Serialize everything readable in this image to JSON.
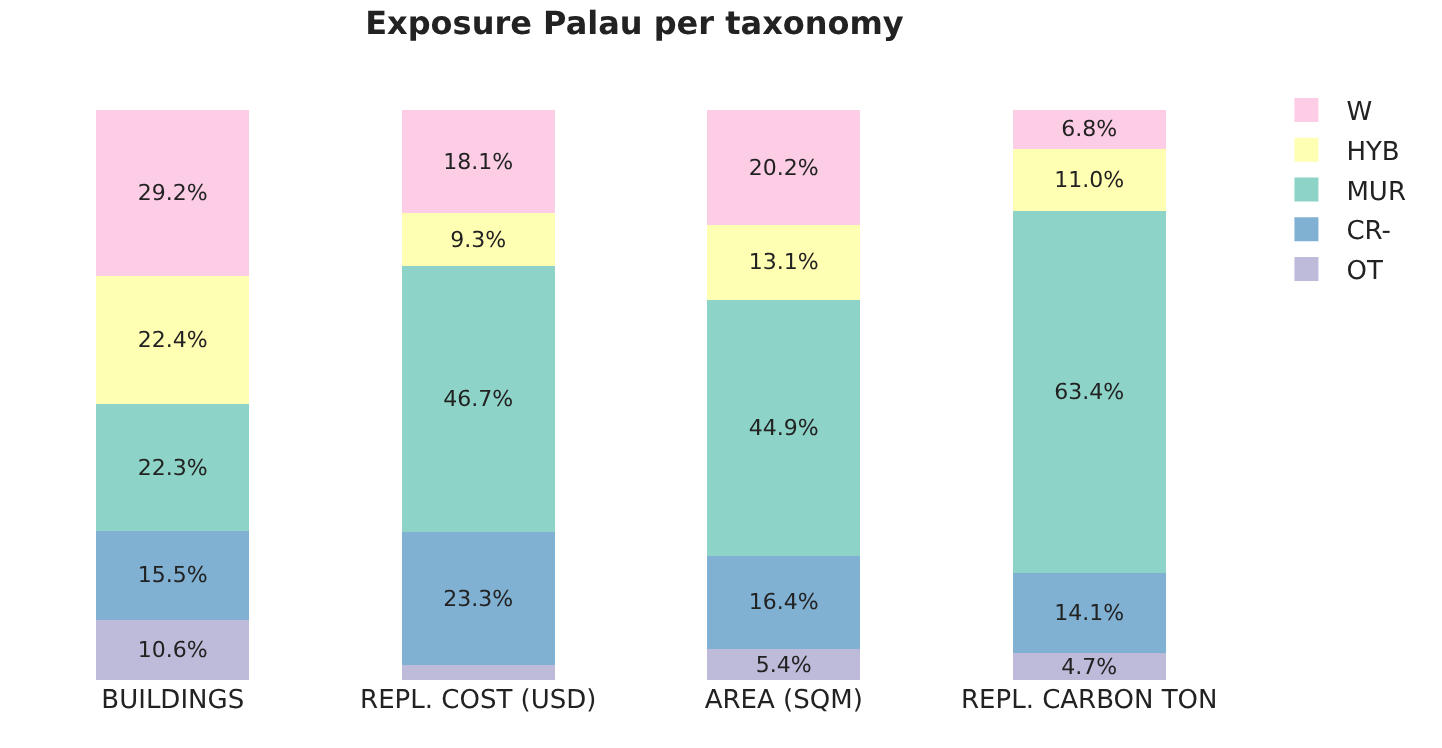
{
  "chart_data": {
    "type": "bar",
    "stacked": true,
    "title": "Exposure Palau per taxonomy",
    "categories": [
      "BUILDINGS",
      "REPL. COST (USD)",
      "AREA (SQM)",
      "REPL. CARBON TON"
    ],
    "legend": "top right",
    "tick_labels": "x",
    "series": [
      {
        "name": "OT",
        "color": "#bebada",
        "values": [
          10.6,
          2.6,
          5.4,
          4.7
        ],
        "value_labels": [
          "10.6%",
          null,
          "5.4%",
          "4.7%"
        ]
      },
      {
        "name": "CR-",
        "color": "#80b1d3",
        "values": [
          15.5,
          23.3,
          16.4,
          14.1
        ],
        "value_labels": [
          "15.5%",
          "23.3%",
          "16.4%",
          "14.1%"
        ]
      },
      {
        "name": "MUR",
        "color": "#8dd3c7",
        "values": [
          22.3,
          46.7,
          44.9,
          63.4
        ],
        "value_labels": [
          "22.3%",
          "46.7%",
          "44.9%",
          "63.4%"
        ]
      },
      {
        "name": "HYB",
        "color": "#ffffb3",
        "values": [
          22.4,
          9.3,
          13.1,
          11.0
        ],
        "value_labels": [
          "22.4%",
          "9.3%",
          "13.1%",
          "11.0%"
        ]
      },
      {
        "name": "W",
        "color": "#fccde5",
        "values": [
          29.2,
          18.1,
          20.2,
          6.8
        ],
        "value_labels": [
          "29.2%",
          "18.1%",
          "20.2%",
          "6.8%"
        ]
      }
    ]
  }
}
